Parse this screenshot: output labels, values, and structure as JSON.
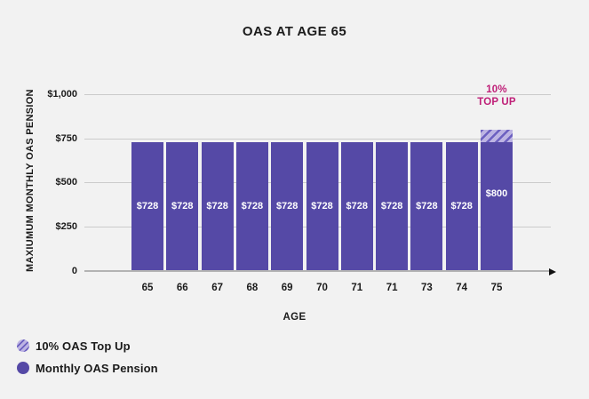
{
  "title": "OAS AT AGE 65",
  "chart_data": {
    "type": "bar",
    "title": "OAS AT AGE 65",
    "xlabel": "AGE",
    "ylabel": "MAXIUMUM MONTHLY OAS PENSION",
    "ylim": [
      0,
      1000
    ],
    "grid": true,
    "legend_position": "bottom-left",
    "yticks": [
      {
        "value": 1000,
        "label": "$1,000"
      },
      {
        "value": 750,
        "label": "$750"
      },
      {
        "value": 500,
        "label": "$500"
      },
      {
        "value": 250,
        "label": "$250"
      },
      {
        "value": 0,
        "label": "0"
      }
    ],
    "categories": [
      "65",
      "66",
      "67",
      "68",
      "69",
      "70",
      "71",
      "71",
      "73",
      "74",
      "75"
    ],
    "series": [
      {
        "name": "Monthly OAS Pension",
        "values": [
          728,
          728,
          728,
          728,
          728,
          728,
          728,
          728,
          728,
          728,
          728
        ]
      },
      {
        "name": "10% OAS Top Up",
        "values": [
          0,
          0,
          0,
          0,
          0,
          0,
          0,
          0,
          0,
          0,
          72
        ]
      }
    ],
    "bars": [
      {
        "category": "65",
        "pension": 728,
        "total": 728,
        "label": "$728"
      },
      {
        "category": "66",
        "pension": 728,
        "total": 728,
        "label": "$728"
      },
      {
        "category": "67",
        "pension": 728,
        "total": 728,
        "label": "$728"
      },
      {
        "category": "68",
        "pension": 728,
        "total": 728,
        "label": "$728"
      },
      {
        "category": "69",
        "pension": 728,
        "total": 728,
        "label": "$728"
      },
      {
        "category": "70",
        "pension": 728,
        "total": 728,
        "label": "$728"
      },
      {
        "category": "71",
        "pension": 728,
        "total": 728,
        "label": "$728"
      },
      {
        "category": "71",
        "pension": 728,
        "total": 728,
        "label": "$728"
      },
      {
        "category": "73",
        "pension": 728,
        "total": 728,
        "label": "$728"
      },
      {
        "category": "74",
        "pension": 728,
        "total": 728,
        "label": "$728"
      },
      {
        "category": "75",
        "pension": 728,
        "total": 800,
        "label": "$800",
        "hatched_top": true
      }
    ],
    "annotation": {
      "line1": "10%",
      "line2": "TOP UP",
      "color": "#bf2078"
    },
    "colors": {
      "bar": "#5549a6",
      "hatch_background": "#bdb4e3",
      "hatch_stripe": "#6c60c0",
      "annotation": "#bf2078",
      "bar_label": "#ffffff",
      "gridline": "#cbcbcb",
      "axis_line": "#b3b3b3",
      "text": "#1b1b1b",
      "page_background": "#f2f2f2"
    }
  },
  "legend": {
    "items": [
      {
        "label": "10% OAS Top Up",
        "swatch": "hatch"
      },
      {
        "label": "Monthly OAS Pension",
        "swatch": "solid"
      }
    ]
  }
}
